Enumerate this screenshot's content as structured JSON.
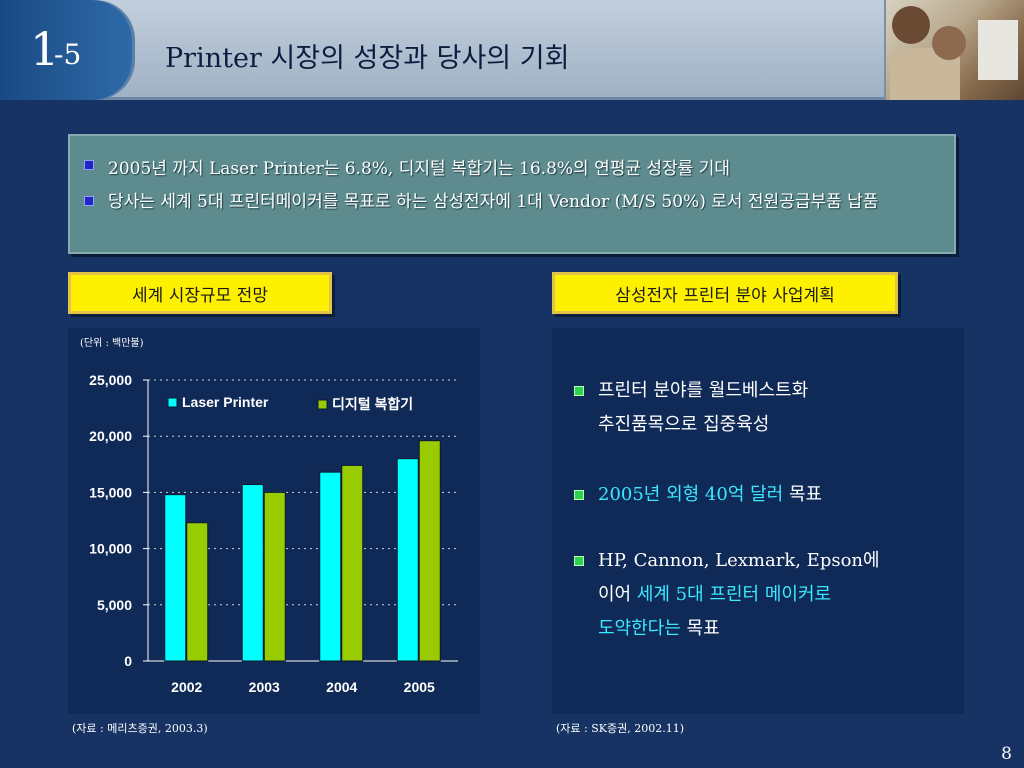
{
  "header": {
    "number": "1",
    "sub": "-5",
    "title": "Printer 시장의 성장과 당사의 기회"
  },
  "bullets": [
    "2005년 까지 Laser Printer는 6.8%, 디지털 복합기는 16.8%의 연평균 성장률 기대",
    "당사는 세계 5대 프린터메이커를 목표로 하는 삼성전자에 1대 Vendor (M/S 50%) 로서 전원공급부품 납품"
  ],
  "left_label": "세계 시장규모 전망",
  "right_label": "삼성전자 프린터 분야 사업계획",
  "unit_text": "(단위 : 백만불)",
  "colors": {
    "laser": "#00ffff",
    "digital": "#99cc00",
    "bg": "#173363",
    "label_bg": "#fdf100"
  },
  "chart_data": {
    "type": "bar",
    "categories": [
      "2002",
      "2003",
      "2004",
      "2005"
    ],
    "series": [
      {
        "name": "Laser Printer",
        "values": [
          14800,
          15700,
          16800,
          18000
        ]
      },
      {
        "name": "디지털 복합기",
        "values": [
          12300,
          15000,
          17400,
          19600
        ]
      }
    ],
    "ylim": [
      0,
      25000
    ],
    "yticks": [
      "0",
      "5,000",
      "10,000",
      "15,000",
      "20,000",
      "25,000"
    ],
    "grid": true,
    "legend": "top"
  },
  "right_items": [
    {
      "parts": [
        {
          "text": "프린터 분야를 월드베스트화",
          "hl": false
        }
      ],
      "line2": [
        {
          "text": "추진품목으로 집중육성",
          "hl": false
        }
      ]
    },
    {
      "parts": [
        {
          "text": "2005년 외형 40억 달러",
          "hl": true
        },
        {
          "text": " 목표",
          "hl": false
        }
      ]
    },
    {
      "parts": [
        {
          "text": "HP, Cannon, Lexmark, Epson에",
          "hl": false
        }
      ],
      "line2": [
        {
          "text": "이어 ",
          "hl": false
        },
        {
          "text": "세계 5대 프린터 메이커로",
          "hl": true
        }
      ],
      "line3": [
        {
          "text": "도약한다는 ",
          "hl": true
        },
        {
          "text": "목표",
          "hl": false
        }
      ]
    }
  ],
  "sources": [
    "(자료 : 메리츠증권, 2003.3)",
    "(자료 : SK증권, 2002.11)"
  ],
  "page_number": "8"
}
